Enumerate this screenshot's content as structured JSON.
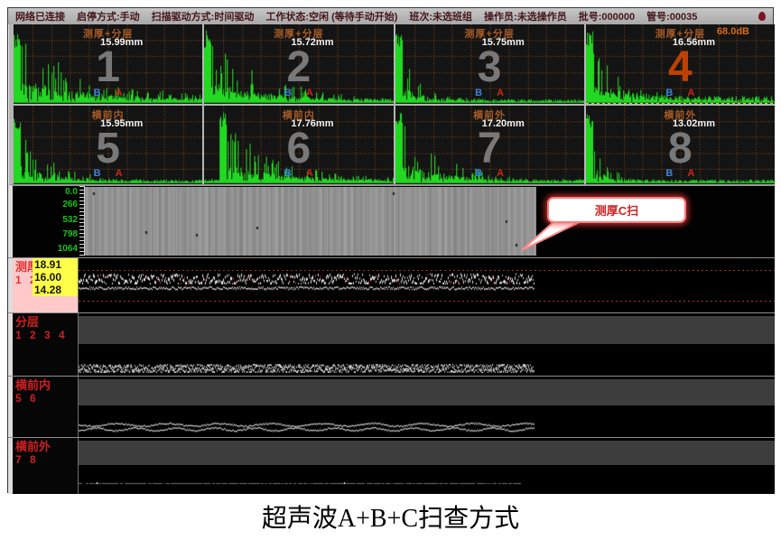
{
  "statusbar": {
    "items": [
      "网络已连接",
      "启停方式:手动",
      "扫描驱动方式:时间驱动",
      "工作状态:空闲 (等待手动开始)",
      "班次:未选班组",
      "操作员:未选操作员",
      "批号:000000",
      "管号:00035"
    ]
  },
  "ascan": {
    "panels": [
      {
        "label": "测厚+分层",
        "thickness": "15.99mm",
        "number": "1"
      },
      {
        "label": "测厚+分层",
        "thickness": "15.72mm",
        "number": "2"
      },
      {
        "label": "测厚+分层",
        "thickness": "15.75mm",
        "number": "3"
      },
      {
        "label": "测厚+分层",
        "gain": "68.0dB",
        "thickness": "16.56mm",
        "number": "4",
        "selected": true
      },
      {
        "label": "横前内",
        "thickness": "15.95mm",
        "number": "5"
      },
      {
        "label": "横前内",
        "thickness": "17.76mm",
        "number": "6"
      },
      {
        "label": "横前外",
        "thickness": "17.20mm",
        "number": "7"
      },
      {
        "label": "横前外",
        "thickness": "13.02mm",
        "number": "8"
      }
    ],
    "icons": {
      "b": "B",
      "a": "A"
    }
  },
  "cscan": {
    "ticks": [
      "0.0",
      "266",
      "532",
      "798",
      "1064"
    ],
    "callout_label": "测厚C扫"
  },
  "bscan": {
    "rows": [
      {
        "label": "测厚",
        "channels": "1 2 3",
        "values": [
          "18.91",
          "16.00",
          "14.28"
        ]
      },
      {
        "label": "分层",
        "channels": "1 2 3 4"
      },
      {
        "label": "横前内",
        "channels": "5 6"
      },
      {
        "label": "横前外",
        "channels": "7 8"
      }
    ]
  },
  "caption": "超声波A+B+C扫查方式",
  "colors": {
    "waveform_green": "#22d822",
    "grid_orange": "#7d4a1e",
    "selected_red": "#ff4545",
    "callout_red": "#cc2222",
    "label_pink": "#ffc9c9",
    "value_yellow": "#ffff4a",
    "scale_green": "#17c417"
  }
}
